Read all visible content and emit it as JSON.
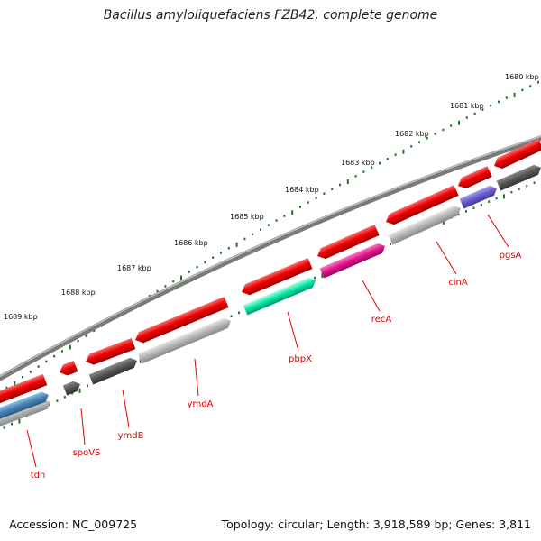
{
  "title": "Bacillus amyloliquefaciens FZB42, complete genome",
  "accession_line": "Accession: NC_009725",
  "stats_line": "Topology: circular; Length: 3,918,589 bp; Genes: 3,811",
  "ticks": [
    "1680 kbp",
    "1681 kbp",
    "1682 kbp",
    "1683 kbp",
    "1684 kbp",
    "1685 kbp",
    "1686 kbp",
    "1687 kbp",
    "1688 kbp",
    "1689 kbp"
  ],
  "genes": [
    {
      "name": "pgsA",
      "strand": "reverse",
      "color": "#6a5acd"
    },
    {
      "name": "cinA",
      "strand": "reverse",
      "color": "#b0b0b0"
    },
    {
      "name": "recA",
      "strand": "reverse",
      "color": "#e0138c"
    },
    {
      "name": "pbpX",
      "strand": "reverse",
      "color": "#00e0a0"
    },
    {
      "name": "ymdA",
      "strand": "reverse",
      "color": "#b0b0b0"
    },
    {
      "name": "ymdB",
      "strand": "reverse",
      "color": "#505050"
    },
    {
      "name": "spoVS",
      "strand": "reverse",
      "color": "#505050"
    },
    {
      "name": "tdh",
      "strand": "reverse",
      "color": "#4682b4"
    }
  ],
  "colors": {
    "forward_cds": "#e00000",
    "backbone": "#888888",
    "tick_marks": "#1a7a1a",
    "gene_labels": "#e00000"
  }
}
